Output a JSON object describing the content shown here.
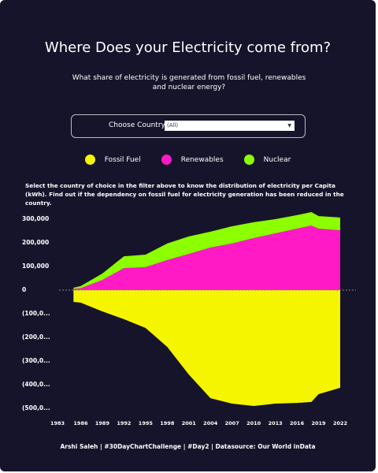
{
  "header": {
    "title": "Where Does your Electricity come from?",
    "subtitle": "What share of electricity is generated from fossil fuel, renewables and nuclear energy?"
  },
  "filter": {
    "label": "Choose Country",
    "value": "(All)"
  },
  "description": "Select the country of choice in the filter above to know the distribution of electricity per Capita (kWh). Find out if the dependency on fossil fuel for electricity generation has been reduced in the country.",
  "footer": "Arshi Saleh | #30DayChartChallenge | #Day2 | Datasource: Our World inData",
  "chart_data": {
    "type": "area",
    "x": [
      1985,
      1986,
      1989,
      1992,
      1995,
      1998,
      2001,
      2004,
      2007,
      2010,
      2013,
      2016,
      2018,
      2019,
      2022
    ],
    "series": [
      {
        "name": "Fossil Fuel",
        "color": "#f5f500",
        "values": [
          -50000,
          -53000,
          -90000,
          -123000,
          -160000,
          -240000,
          -357000,
          -457000,
          -480000,
          -490000,
          -480000,
          -477000,
          -473000,
          -440000,
          -413000
        ]
      },
      {
        "name": "Renewables",
        "color": "#ff1ac6",
        "values": [
          5000,
          8000,
          43000,
          93000,
          97000,
          127000,
          153000,
          180000,
          197000,
          220000,
          240000,
          260000,
          273000,
          260000,
          253000
        ]
      },
      {
        "name": "Nuclear",
        "color": "#8cff00",
        "values": [
          5000,
          9000,
          27000,
          50000,
          53000,
          70000,
          74000,
          67000,
          73000,
          67000,
          60000,
          57000,
          57000,
          53000,
          54000
        ]
      }
    ],
    "xlim": [
      1983,
      2022
    ],
    "xticks": [
      1983,
      1986,
      1989,
      1992,
      1995,
      1998,
      2001,
      2004,
      2007,
      2010,
      2013,
      2016,
      2019,
      2022
    ],
    "ylim": [
      -520000,
      340000
    ],
    "yticks": [
      {
        "value": 300000,
        "label": "300,000"
      },
      {
        "value": 200000,
        "label": "200,000"
      },
      {
        "value": 100000,
        "label": "100,000"
      },
      0,
      {
        "value": -100000,
        "label": "(100,0..."
      },
      {
        "value": -200000,
        "label": "(200,0..."
      },
      {
        "value": -300000,
        "label": "(300,0..."
      },
      {
        "value": -400000,
        "label": "(400,0..."
      },
      {
        "value": -500000,
        "label": "(500,0..."
      }
    ]
  }
}
